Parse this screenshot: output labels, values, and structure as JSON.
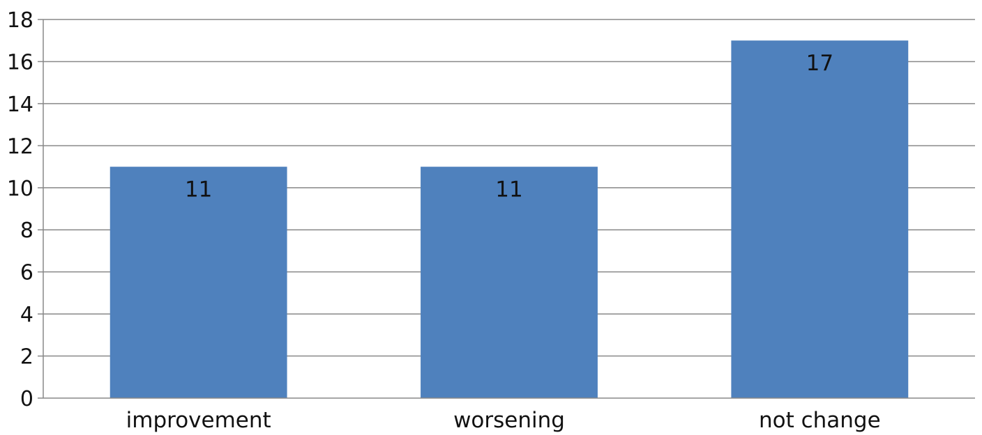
{
  "colors": {
    "bar": "#4f81bd",
    "grid": "#888888",
    "axis": "#888888",
    "text": "#111111",
    "background": "#ffffff"
  },
  "chart_data": {
    "type": "bar",
    "categories": [
      "improvement",
      "worsening",
      "not change"
    ],
    "values": [
      11,
      11,
      17
    ],
    "data_labels": [
      "11",
      "11",
      "17"
    ],
    "y_ticks": [
      "0",
      "2",
      "4",
      "6",
      "8",
      "10",
      "12",
      "14",
      "16",
      "18"
    ],
    "ylim": [
      0,
      18
    ],
    "grid": true,
    "legend": "none",
    "title": "",
    "xlabel": "",
    "ylabel": ""
  }
}
